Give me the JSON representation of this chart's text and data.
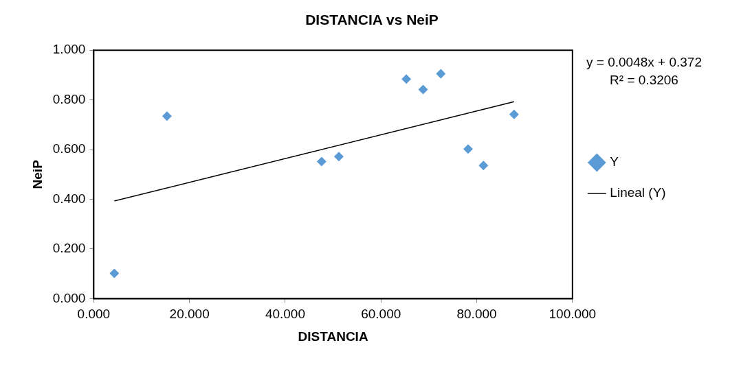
{
  "chart_data": {
    "type": "scatter",
    "title": "DISTANCIA vs NeiP",
    "xlabel": "DISTANCIA",
    "ylabel": "NeiP",
    "annotations": [
      "y = 0.0048x + 0.372",
      "R² = 0.3206"
    ],
    "xlim": [
      0,
      100
    ],
    "xticks": [
      {
        "value": 0,
        "label": "0.000"
      },
      {
        "value": 20,
        "label": "20.000"
      },
      {
        "value": 40,
        "label": "40.000"
      },
      {
        "value": 60,
        "label": "60.000"
      },
      {
        "value": 80,
        "label": "80.000"
      },
      {
        "value": 100,
        "label": "100.000"
      }
    ],
    "ylim": [
      0,
      1
    ],
    "yticks": [
      {
        "value": 0,
        "label": "0.000"
      },
      {
        "value": 0.2,
        "label": "0.200"
      },
      {
        "value": 0.4,
        "label": "0.400"
      },
      {
        "value": 0.6,
        "label": "0.600"
      },
      {
        "value": 0.8,
        "label": "0.800"
      },
      {
        "value": 1,
        "label": "1.000"
      }
    ],
    "grid": false,
    "legend": "right",
    "marker": "diamond",
    "series": [
      {
        "name": "Y",
        "color": "#5b9bd5",
        "x": [
          4.3,
          15.3,
          47.6,
          51.2,
          65.3,
          68.8,
          72.5,
          78.2,
          81.4,
          87.8
        ],
        "values": [
          0.102,
          0.735,
          0.552,
          0.572,
          0.884,
          0.842,
          0.905,
          0.602,
          0.536,
          0.742
        ]
      },
      {
        "name": "Lineal (Y)",
        "type": "line",
        "color": "#000000",
        "marker": "none",
        "line_style": "solid",
        "x": [
          4.3,
          87.8
        ],
        "values": [
          0.393,
          0.793
        ]
      }
    ]
  }
}
